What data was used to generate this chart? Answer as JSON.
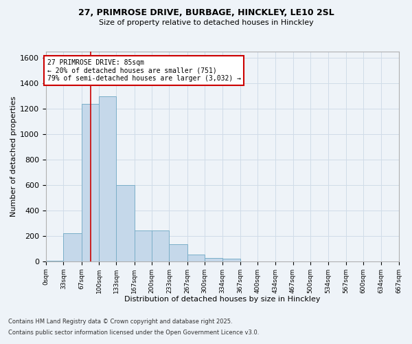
{
  "title_line1": "27, PRIMROSE DRIVE, BURBAGE, HINCKLEY, LE10 2SL",
  "title_line2": "Size of property relative to detached houses in Hinckley",
  "xlabel": "Distribution of detached houses by size in Hinckley",
  "ylabel": "Number of detached properties",
  "bar_bins": [
    0,
    33,
    67,
    100,
    133,
    167,
    200,
    233,
    267,
    300,
    334,
    367,
    400,
    434,
    467,
    500,
    534,
    567,
    600,
    634,
    667
  ],
  "bar_heights": [
    5,
    220,
    1240,
    1300,
    600,
    240,
    240,
    135,
    55,
    25,
    20,
    0,
    0,
    0,
    0,
    0,
    0,
    0,
    0,
    0
  ],
  "bar_color": "#c5d8ea",
  "bar_edgecolor": "#7aaec8",
  "grid_color": "#d0dce8",
  "background_color": "#eef3f8",
  "red_line_x": 85,
  "annotation_title": "27 PRIMROSE DRIVE: 85sqm",
  "annotation_line2": "← 20% of detached houses are smaller (751)",
  "annotation_line3": "79% of semi-detached houses are larger (3,032) →",
  "annotation_box_color": "#ffffff",
  "annotation_box_edgecolor": "#cc0000",
  "red_line_color": "#cc0000",
  "ylim": [
    0,
    1650
  ],
  "yticks": [
    0,
    200,
    400,
    600,
    800,
    1000,
    1200,
    1400,
    1600
  ],
  "tick_labels": [
    "0sqm",
    "33sqm",
    "67sqm",
    "100sqm",
    "133sqm",
    "167sqm",
    "200sqm",
    "233sqm",
    "267sqm",
    "300sqm",
    "334sqm",
    "367sqm",
    "400sqm",
    "434sqm",
    "467sqm",
    "500sqm",
    "534sqm",
    "567sqm",
    "600sqm",
    "634sqm",
    "667sqm"
  ],
  "footnote1": "Contains HM Land Registry data © Crown copyright and database right 2025.",
  "footnote2": "Contains public sector information licensed under the Open Government Licence v3.0."
}
